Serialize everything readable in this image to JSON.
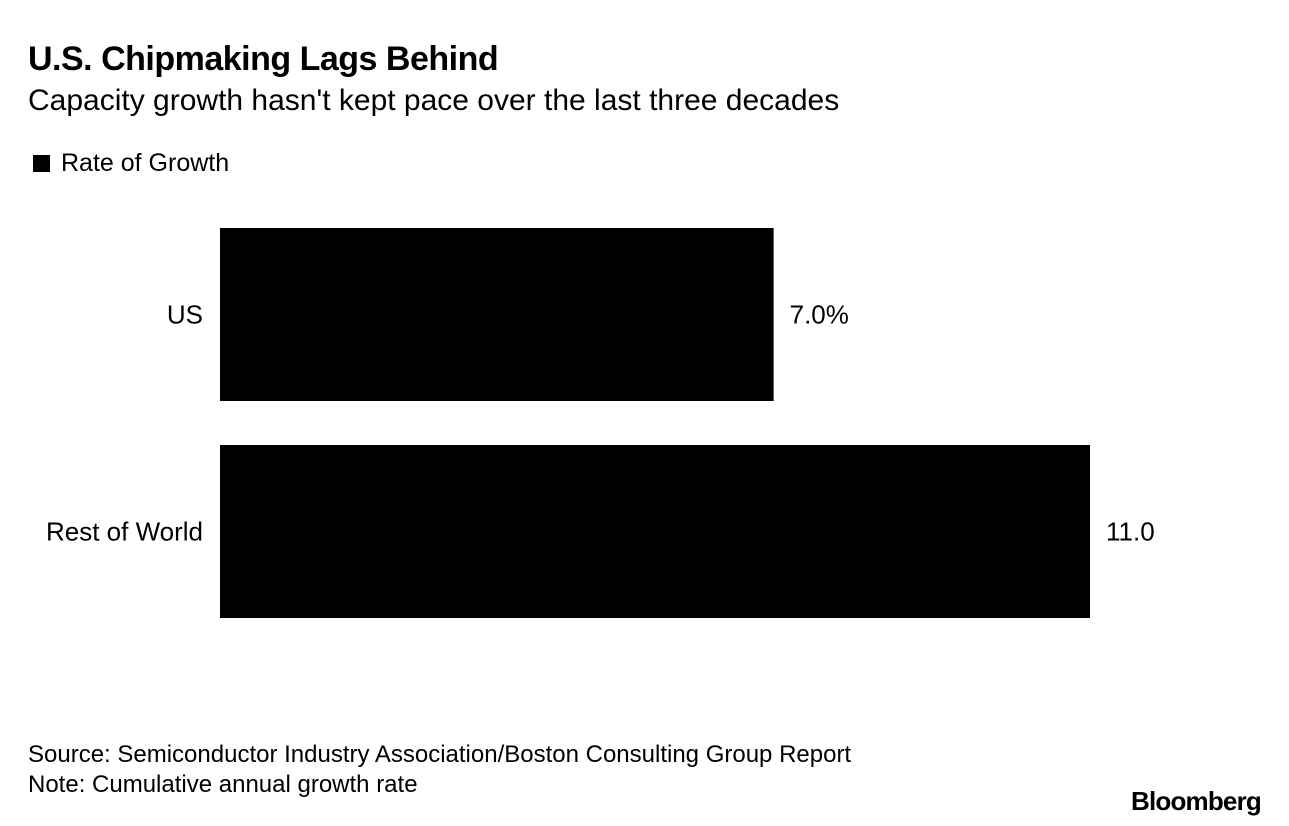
{
  "chart_data": {
    "type": "bar",
    "orientation": "horizontal",
    "title": "U.S. Chipmaking Lags Behind",
    "subtitle": "Capacity growth hasn't kept pace over the last three decades",
    "legend": [
      "Rate of Growth"
    ],
    "categories": [
      "US",
      "Rest of World"
    ],
    "series": [
      {
        "name": "Rate of Growth",
        "values": [
          7.0,
          11.0
        ],
        "color": "#000000"
      }
    ],
    "data_labels": [
      "7.0%",
      "11.0"
    ],
    "xlim": [
      0,
      11.0
    ],
    "grid": false,
    "source": "Source: Semiconductor Industry Association/Boston Consulting Group Report",
    "note": "Note: Cumulative annual growth rate"
  },
  "brand": "Bloomberg",
  "colors": {
    "bar": "#000000",
    "text": "#000000",
    "background": "#ffffff"
  }
}
